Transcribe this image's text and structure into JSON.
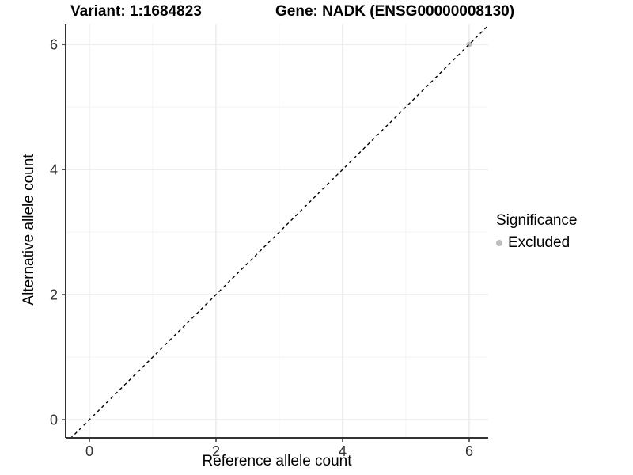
{
  "title": {
    "variant": "Variant: 1:1684823",
    "gene": "Gene: NADK (ENSG00000008130)"
  },
  "legend": {
    "title": "Significance",
    "items": [
      {
        "label": "Excluded",
        "color": "#bdbdbd",
        "marker": "dot"
      }
    ]
  },
  "colors": {
    "background": "#ffffff",
    "axis_line": "#333333",
    "tick_label": "#333333",
    "grid_major": "#e4e4e4",
    "grid_minor": "#f2f2f2",
    "reference_line": "#000000",
    "excluded_point": "#bdbdbd"
  },
  "chart_data": {
    "type": "scatter",
    "title": "Variant: 1:1684823    Gene: NADK (ENSG00000008130)",
    "xlabel": "Reference allele count",
    "ylabel": "Alternative allele count",
    "xlim": [
      -0.375,
      6.3
    ],
    "ylim": [
      -0.29,
      6.33
    ],
    "x_ticks": [
      0,
      2,
      4,
      6
    ],
    "y_ticks": [
      0,
      2,
      4,
      6
    ],
    "x_minor_ticks": [
      1,
      3,
      5
    ],
    "y_minor_ticks": [
      1,
      3,
      5
    ],
    "grid": true,
    "legend_position": "right",
    "series": [
      {
        "name": "Excluded",
        "color": "#bdbdbd",
        "points": [
          [
            6,
            6
          ]
        ]
      }
    ],
    "reference_line": {
      "slope": 1,
      "intercept": 0,
      "style": "dashed",
      "color": "#000000"
    }
  }
}
